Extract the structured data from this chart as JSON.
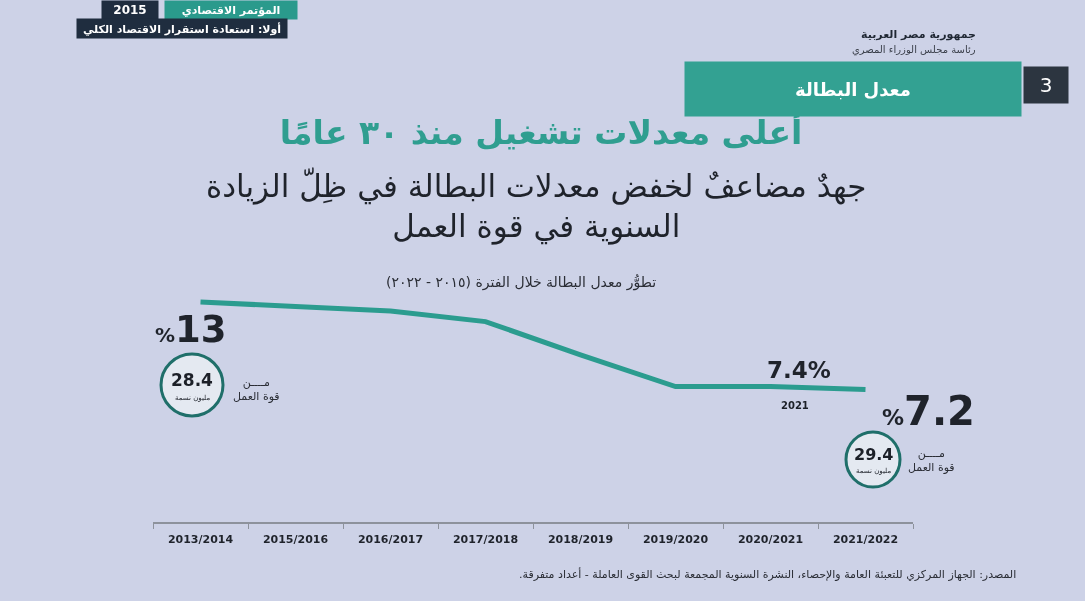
{
  "chart_data": {
    "type": "line",
    "title": "أعلى معدلات تشغيل منذ ٣٠ عامًا",
    "subtitle": "جهدٌ مضاعفٌ لخفض معدلات البطالة في ظِلّ الزيادة\nالسنوية في قوة العمل",
    "categories": [
      "2013/2014",
      "2015/2016",
      "2016/2017",
      "2017/2018",
      "2018/2019",
      "2019/2020",
      "2020/2021",
      "2021/2022"
    ],
    "values": [
      13,
      12.7,
      12.4,
      11.7,
      9.5,
      7.4,
      7.4,
      7.2
    ],
    "value_labels": [
      "%13",
      null,
      null,
      null,
      null,
      null,
      "7.4%",
      "%7.2"
    ],
    "color": "#2b9c8f",
    "line_style": "solid",
    "grid": false,
    "tick_labels": "x",
    "annotations": [
      "2015",
      "المؤتمر الاقتصادي",
      "أولا: استعادة استقرار الاقتصاد الكلي",
      "جمهورية مصر العربية",
      "رئاسة مجلس الوزراء المصري",
      "3",
      "معدل البطالة",
      "تطوُّر معدل البطالة خلال الفترة (٢٠١٥ - ٢٠٢٢)",
      "28.4",
      "مليون نسمة",
      "مــــن\nقوة العمل",
      "2021",
      "29.4",
      "مليون نسمة",
      "مــــن\nقوة العمل",
      "المصدر: الجهاز المركزي للتعبئة العامة والإحصاء، النشرة السنوية المجمعة لبحث القوى العاملة - أعداد متفرقة."
    ]
  }
}
